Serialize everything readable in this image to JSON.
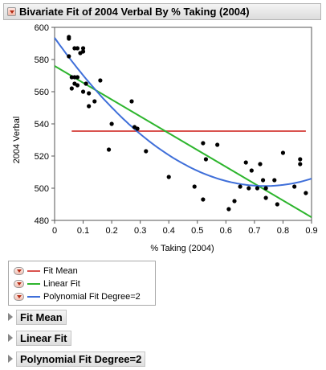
{
  "window": {
    "title": "Bivariate Fit of 2004 Verbal By % Taking (2004)"
  },
  "chart_data": {
    "type": "scatter",
    "xlabel": "% Taking (2004)",
    "ylabel": "2004 Verbal",
    "xlim": [
      0,
      0.9
    ],
    "ylim": [
      480,
      600
    ],
    "xticks": [
      0,
      0.1,
      0.2,
      0.3,
      0.4,
      0.5,
      0.6,
      0.7,
      0.8,
      0.9
    ],
    "yticks": [
      480,
      500,
      520,
      540,
      560,
      580,
      600
    ],
    "points": [
      [
        0.05,
        594
      ],
      [
        0.05,
        593
      ],
      [
        0.05,
        582
      ],
      [
        0.06,
        569
      ],
      [
        0.06,
        562
      ],
      [
        0.07,
        587
      ],
      [
        0.07,
        569
      ],
      [
        0.07,
        565
      ],
      [
        0.08,
        587
      ],
      [
        0.08,
        569
      ],
      [
        0.08,
        564
      ],
      [
        0.09,
        584
      ],
      [
        0.1,
        587
      ],
      [
        0.1,
        585
      ],
      [
        0.1,
        560
      ],
      [
        0.11,
        565
      ],
      [
        0.12,
        559
      ],
      [
        0.12,
        551
      ],
      [
        0.14,
        554
      ],
      [
        0.16,
        567
      ],
      [
        0.19,
        524
      ],
      [
        0.2,
        540
      ],
      [
        0.27,
        554
      ],
      [
        0.28,
        538
      ],
      [
        0.29,
        537
      ],
      [
        0.32,
        523
      ],
      [
        0.4,
        507
      ],
      [
        0.49,
        501
      ],
      [
        0.52,
        528
      ],
      [
        0.52,
        493
      ],
      [
        0.53,
        518
      ],
      [
        0.57,
        527
      ],
      [
        0.61,
        487
      ],
      [
        0.63,
        492
      ],
      [
        0.65,
        501
      ],
      [
        0.67,
        516
      ],
      [
        0.68,
        500
      ],
      [
        0.69,
        511
      ],
      [
        0.71,
        500
      ],
      [
        0.72,
        515
      ],
      [
        0.73,
        505
      ],
      [
        0.74,
        494
      ],
      [
        0.74,
        500
      ],
      [
        0.77,
        505
      ],
      [
        0.78,
        490
      ],
      [
        0.8,
        522
      ],
      [
        0.84,
        501
      ],
      [
        0.86,
        518
      ],
      [
        0.86,
        515
      ],
      [
        0.88,
        497
      ]
    ],
    "series": [
      {
        "name": "Fit Mean",
        "color": "#d9534f",
        "kind": "mean",
        "value": 535.5,
        "x_range": [
          0.06,
          0.88
        ]
      },
      {
        "name": "Linear Fit",
        "color": "#2db52d",
        "kind": "linear",
        "intercept": 576,
        "slope": -104.5
      },
      {
        "name": "Polynomial Fit Degree=2",
        "color": "#3f6fd9",
        "kind": "quadratic",
        "coeffs": [
          593.5,
          -250.3,
          170.0
        ]
      }
    ]
  },
  "legend": {
    "items": [
      {
        "label": "Fit Mean",
        "color": "#d9534f"
      },
      {
        "label": "Linear Fit",
        "color": "#2db52d"
      },
      {
        "label": "Polynomial Fit Degree=2",
        "color": "#3f6fd9"
      }
    ]
  },
  "sections": [
    {
      "label": "Fit Mean"
    },
    {
      "label": "Linear Fit"
    },
    {
      "label": "Polynomial Fit Degree=2"
    }
  ]
}
